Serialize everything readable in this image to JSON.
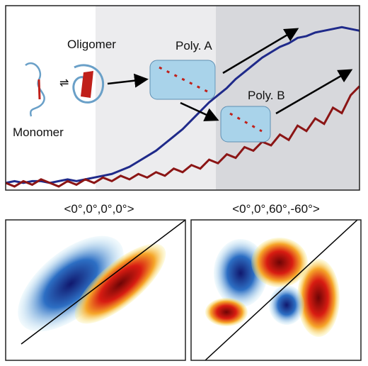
{
  "chart_data": {
    "type": "line",
    "x": [
      0,
      0.025,
      0.05,
      0.075,
      0.1,
      0.125,
      0.15,
      0.175,
      0.2,
      0.225,
      0.25,
      0.275,
      0.3,
      0.325,
      0.35,
      0.375,
      0.4,
      0.425,
      0.45,
      0.475,
      0.5,
      0.525,
      0.55,
      0.575,
      0.6,
      0.625,
      0.65,
      0.675,
      0.7,
      0.725,
      0.75,
      0.775,
      0.8,
      0.825,
      0.85,
      0.875,
      0.9,
      0.925,
      0.95,
      0.975,
      1
    ],
    "xlim": [
      0,
      1
    ],
    "ylim": [
      -0.03,
      1
    ],
    "series": [
      {
        "color": "#1f2a8a",
        "values": [
          0.01,
          0.02,
          0.01,
          0.02,
          0.02,
          0.01,
          0.02,
          0.03,
          0.02,
          0.03,
          0.04,
          0.05,
          0.06,
          0.08,
          0.1,
          0.13,
          0.16,
          0.19,
          0.23,
          0.27,
          0.31,
          0.36,
          0.41,
          0.46,
          0.5,
          0.54,
          0.59,
          0.63,
          0.67,
          0.71,
          0.74,
          0.77,
          0.79,
          0.82,
          0.83,
          0.85,
          0.86,
          0.87,
          0.88,
          0.87,
          0.86
        ]
      },
      {
        "color": "#8b1515",
        "values": [
          0.01,
          -0.01,
          0.02,
          0.0,
          0.03,
          0.01,
          -0.01,
          0.02,
          0.0,
          0.03,
          0.01,
          0.04,
          0.02,
          0.05,
          0.03,
          0.06,
          0.04,
          0.07,
          0.05,
          0.09,
          0.07,
          0.11,
          0.09,
          0.14,
          0.12,
          0.17,
          0.15,
          0.21,
          0.19,
          0.24,
          0.22,
          0.28,
          0.25,
          0.33,
          0.3,
          0.37,
          0.34,
          0.43,
          0.4,
          0.5,
          0.55
        ]
      }
    ],
    "annotations": [
      "Monomer",
      "Oligomer",
      "Poly. A",
      "Poly. B"
    ],
    "panel_titles": [
      "<0°,0°,0°,0°>",
      "<0°,0°,60°,-60°>"
    ]
  }
}
